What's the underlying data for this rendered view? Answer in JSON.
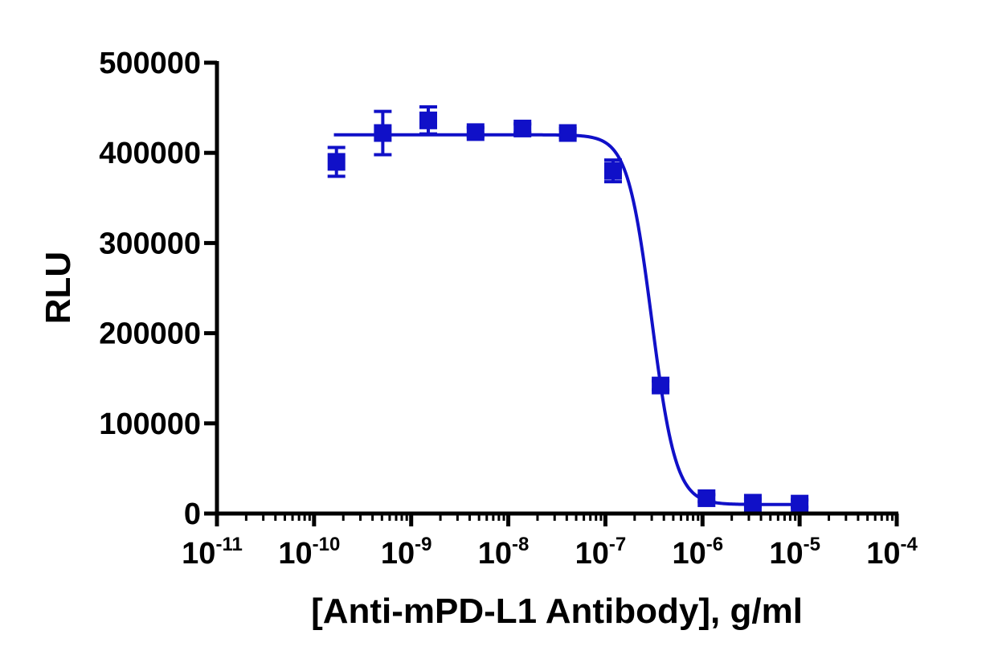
{
  "chart_data": {
    "type": "scatter",
    "title": "",
    "xlabel": "[Anti-mPD-L1 Antibody], g/ml",
    "ylabel": "RLU",
    "x_scale": "log",
    "xlim": [
      1e-11,
      0.0001
    ],
    "ylim": [
      0,
      500000
    ],
    "x_ticks": [
      {
        "base": "10",
        "exp": "-11"
      },
      {
        "base": "10",
        "exp": "-10"
      },
      {
        "base": "10",
        "exp": "-9"
      },
      {
        "base": "10",
        "exp": "-8"
      },
      {
        "base": "10",
        "exp": "-7"
      },
      {
        "base": "10",
        "exp": "-6"
      },
      {
        "base": "10",
        "exp": "-5"
      },
      {
        "base": "10",
        "exp": "-4"
      }
    ],
    "y_ticks": [
      "0",
      "100000",
      "200000",
      "300000",
      "400000",
      "500000"
    ],
    "grid": false,
    "legend": "none",
    "color": "#1010c8",
    "series": [
      {
        "marker": "square",
        "points": [
          {
            "x": 1.7e-10,
            "y": 390000,
            "err": 16000
          },
          {
            "x": 5.1e-10,
            "y": 422000,
            "err": 24000
          },
          {
            "x": 1.5e-09,
            "y": 436000,
            "err": 15000
          },
          {
            "x": 4.6e-09,
            "y": 423000,
            "err": 5000
          },
          {
            "x": 1.4e-08,
            "y": 427000,
            "err": 5000
          },
          {
            "x": 4.1e-08,
            "y": 422000,
            "err": 5000
          },
          {
            "x": 1.2e-07,
            "y": 380000,
            "err": 12000
          },
          {
            "x": 3.7e-07,
            "y": 142000,
            "err": 5000
          },
          {
            "x": 1.1e-06,
            "y": 17000,
            "err": 4000
          },
          {
            "x": 3.3e-06,
            "y": 12000,
            "err": 4000
          },
          {
            "x": 1e-05,
            "y": 11000,
            "err": 4000
          }
        ],
        "fit": {
          "model": "4PL",
          "top": 420000,
          "bottom": 10000,
          "ic50": 3e-07,
          "hill": 3.5,
          "x_range": [
            1.6e-10,
            1e-05
          ]
        }
      }
    ]
  }
}
